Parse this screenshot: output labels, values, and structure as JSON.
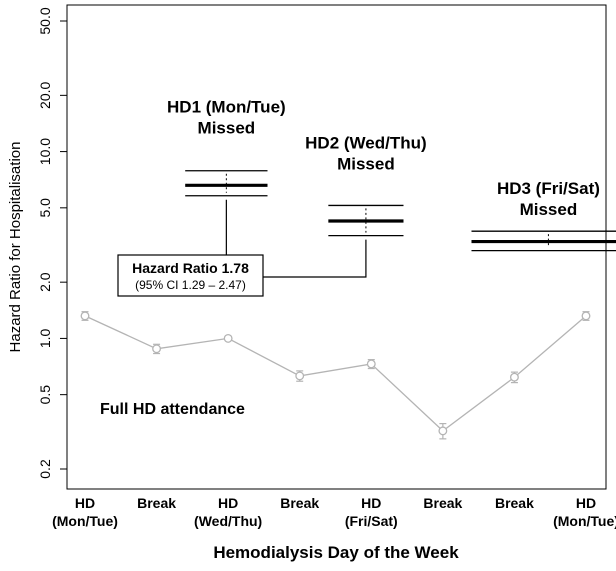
{
  "chart_data": {
    "type": "line",
    "y_scale": "log",
    "ylabel": "Hazard Ratio for Hospitalisation",
    "xlabel": "Hemodialysis Day of the Week",
    "y_ticks": [
      {
        "value": 0.2,
        "label": "0.2"
      },
      {
        "value": 0.5,
        "label": "0.5"
      },
      {
        "value": 1.0,
        "label": "1.0"
      },
      {
        "value": 2.0,
        "label": "2.0"
      },
      {
        "value": 5.0,
        "label": "5.0"
      },
      {
        "value": 10.0,
        "label": "10.0"
      },
      {
        "value": 20.0,
        "label": "20.0"
      },
      {
        "value": 50.0,
        "label": "50.0"
      }
    ],
    "ylim": [
      0.17,
      60
    ],
    "categories": [
      {
        "line1": "HD",
        "line2": "(Mon/Tue)"
      },
      {
        "line1": "Break",
        "line2": ""
      },
      {
        "line1": "HD",
        "line2": "(Wed/Thu)"
      },
      {
        "line1": "Break",
        "line2": ""
      },
      {
        "line1": "HD",
        "line2": "(Fri/Sat)"
      },
      {
        "line1": "Break",
        "line2": ""
      },
      {
        "line1": "Break",
        "line2": ""
      },
      {
        "line1": "HD",
        "line2": "(Mon/Tue)"
      }
    ],
    "series": [
      {
        "values": [
          1.32,
          0.88,
          1.0,
          0.63,
          0.73,
          0.32,
          0.62,
          1.32
        ],
        "ci_low": [
          1.25,
          0.83,
          0.98,
          0.59,
          0.69,
          0.29,
          0.58,
          1.25
        ],
        "ci_high": [
          1.39,
          0.93,
          1.02,
          0.67,
          0.77,
          0.35,
          0.66,
          1.39
        ],
        "color": "#b4b4b4"
      }
    ],
    "missed_estimates": [
      {
        "title_line1": "HD1 (Mon/Tue)",
        "title_line2": "Missed",
        "x_start": 1.4,
        "x_end": 2.55,
        "estimate": 6.6,
        "ci_low": 5.8,
        "ci_high": 7.9
      },
      {
        "title_line1": "HD2 (Wed/Thu)",
        "title_line2": "Missed",
        "x_start": 3.4,
        "x_end": 4.45,
        "estimate": 4.25,
        "ci_low": 3.55,
        "ci_high": 5.15
      },
      {
        "title_line1": "HD3 (Fri/Sat)",
        "title_line2": "Missed",
        "x_start": 5.4,
        "x_end": 7.55,
        "estimate": 3.3,
        "ci_low": 2.95,
        "ci_high": 3.75
      }
    ],
    "callout": {
      "main": "Hazard Ratio 1.78",
      "sub": "(95% CI 1.29 – 2.47)"
    },
    "annotation": "Full HD attendance",
    "grid": false,
    "line_color": "#000000"
  }
}
